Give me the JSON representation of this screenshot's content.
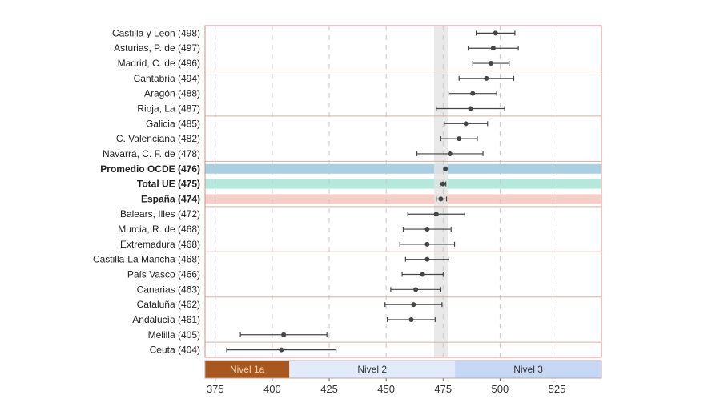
{
  "chart_data": {
    "type": "forest",
    "title": "",
    "xlabel": "",
    "ylabel": "",
    "xlim": [
      370.5,
      544.5
    ],
    "xticks": [
      375,
      400,
      425,
      450,
      475,
      500,
      525
    ],
    "grid": "vertical dashed",
    "reference_band": [
      471,
      477
    ],
    "rows": [
      {
        "label": "Castilla y León (498)",
        "value": 498,
        "lo": 489.5,
        "hi": 506.5,
        "bold": false,
        "highlight": null
      },
      {
        "label": "Asturias, P. de (497)",
        "value": 497,
        "lo": 486,
        "hi": 508,
        "bold": false,
        "highlight": null
      },
      {
        "label": "Madrid, C. de (496)",
        "value": 496,
        "lo": 488,
        "hi": 504,
        "bold": false,
        "highlight": null
      },
      {
        "label": "Cantabria (494)",
        "value": 494,
        "lo": 482,
        "hi": 506,
        "bold": false,
        "highlight": null
      },
      {
        "label": "Aragón (488)",
        "value": 488,
        "lo": 477.5,
        "hi": 498.5,
        "bold": false,
        "highlight": null
      },
      {
        "label": "Rioja, La (487)",
        "value": 487,
        "lo": 472,
        "hi": 502,
        "bold": false,
        "highlight": null
      },
      {
        "label": "Galicia (485)",
        "value": 485,
        "lo": 475.5,
        "hi": 494.5,
        "bold": false,
        "highlight": null
      },
      {
        "label": "C. Valenciana (482)",
        "value": 482,
        "lo": 474,
        "hi": 490,
        "bold": false,
        "highlight": null
      },
      {
        "label": "Navarra, C. F. de (478)",
        "value": 478,
        "lo": 463.5,
        "hi": 492.5,
        "bold": false,
        "highlight": null
      },
      {
        "label": "Promedio OCDE (476)",
        "value": 476,
        "lo": 475.5,
        "hi": 476.5,
        "bold": true,
        "highlight": "#a9cfe0"
      },
      {
        "label": "Total UE (475)",
        "value": 475,
        "lo": 473.8,
        "hi": 476.2,
        "bold": true,
        "highlight": "#b5e8dc"
      },
      {
        "label": "España (474)",
        "value": 474,
        "lo": 472,
        "hi": 476.5,
        "bold": true,
        "highlight": "#f3cfc8"
      },
      {
        "label": "Balears, Illes (472)",
        "value": 472,
        "lo": 459.5,
        "hi": 484.5,
        "bold": false,
        "highlight": null
      },
      {
        "label": "Murcia, R. de (468)",
        "value": 468,
        "lo": 457.5,
        "hi": 478.5,
        "bold": false,
        "highlight": null
      },
      {
        "label": "Extremadura (468)",
        "value": 468,
        "lo": 456,
        "hi": 480,
        "bold": false,
        "highlight": null
      },
      {
        "label": "Castilla-La Mancha (468)",
        "value": 468,
        "lo": 458.5,
        "hi": 477.5,
        "bold": false,
        "highlight": null
      },
      {
        "label": "País Vasco (466)",
        "value": 466,
        "lo": 457,
        "hi": 475,
        "bold": false,
        "highlight": null
      },
      {
        "label": "Canarias (463)",
        "value": 463,
        "lo": 452,
        "hi": 474,
        "bold": false,
        "highlight": null
      },
      {
        "label": "Cataluña (462)",
        "value": 462,
        "lo": 449.5,
        "hi": 474.5,
        "bold": false,
        "highlight": null
      },
      {
        "label": "Andalucía (461)",
        "value": 461,
        "lo": 450.5,
        "hi": 471.5,
        "bold": false,
        "highlight": null
      },
      {
        "label": "Melilla (405)",
        "value": 405,
        "lo": 386,
        "hi": 424,
        "bold": false,
        "highlight": null
      },
      {
        "label": "Ceuta (404)",
        "value": 404,
        "lo": 380,
        "hi": 428,
        "bold": false,
        "highlight": null
      }
    ],
    "levels": [
      {
        "label": "Nivel 1a",
        "from": 370.5,
        "to": 407.5,
        "color": "#a8571e",
        "text_color": "#f3d6b8"
      },
      {
        "label": "Nivel 2",
        "from": 407.5,
        "to": 480.2,
        "color": "#e2ebfa",
        "text_color": "#333333"
      },
      {
        "label": "Nivel 3",
        "from": 480.2,
        "to": 544.5,
        "color": "#c7d8f5",
        "text_color": "#333333"
      }
    ],
    "colors": {
      "frame": "#d98a8a",
      "point": "#444444",
      "grid": "#c8c8c8",
      "separator": "#d4b0a8",
      "band": "#e4e4e4"
    }
  }
}
